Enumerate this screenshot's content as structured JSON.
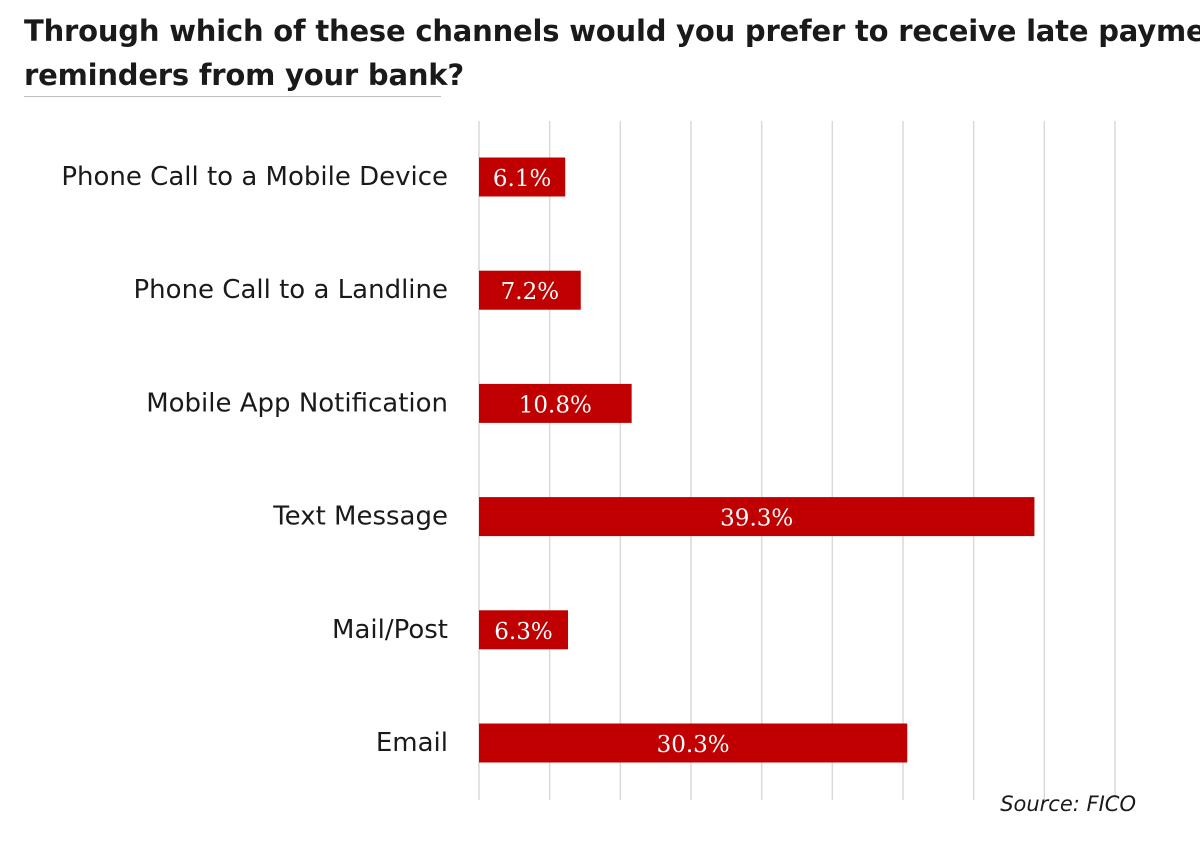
{
  "title": {
    "line1": "Through which of these channels would you prefer to receive late payment",
    "line2": "reminders from your bank?"
  },
  "source": "Source: FICO",
  "colors": {
    "bar": "#c00000",
    "grid": "#d9d9d9",
    "text": "#1a1a1a",
    "data_label": "#ffffff"
  },
  "chart_data": {
    "type": "bar",
    "orientation": "horizontal",
    "title": "Through which of these channels would you prefer to receive late payment reminders from your bank?",
    "categories": [
      "Phone Call to a Mobile Device",
      "Phone Call to a Landline",
      "Mobile App Notification",
      "Text Message",
      "Mail/Post",
      "Email"
    ],
    "values": [
      6.1,
      7.2,
      10.8,
      39.3,
      6.3,
      30.3
    ],
    "data_labels": [
      "6.1%",
      "7.2%",
      "10.8%",
      "39.3%",
      "6.3%",
      "30.3%"
    ],
    "unit": "%",
    "xlim": [
      0,
      45
    ],
    "grid_step": 5,
    "grid": true,
    "legend": "none",
    "xlabel": "",
    "ylabel": ""
  }
}
